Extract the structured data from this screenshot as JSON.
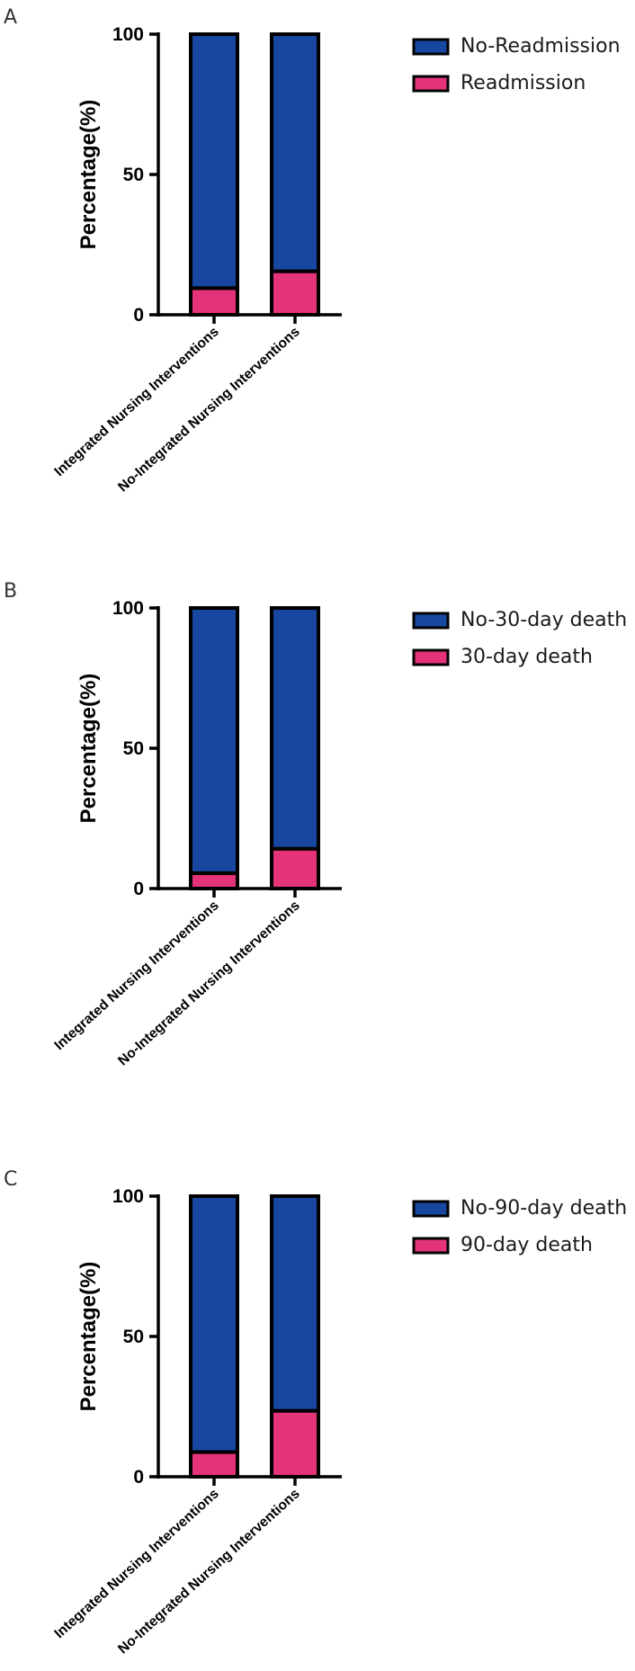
{
  "colors": {
    "upper_segment": "#1747A0",
    "lower_segment": "#E5337A",
    "outline": "#000000"
  },
  "chart_data": [
    {
      "panel": "A",
      "type": "bar",
      "stacked": true,
      "ylabel": "Percentage(%)",
      "ylim": [
        0,
        100
      ],
      "yticks": [
        "0",
        "50",
        "100"
      ],
      "categories": [
        "Integrated Nursing Interventions",
        "No-Integrated Nursing Interventions"
      ],
      "series": [
        {
          "name": "Readmission",
          "values": [
            9.5,
            15.5
          ]
        },
        {
          "name": "No-Readmission",
          "values": [
            90.5,
            84.5
          ]
        }
      ],
      "legend": [
        "No-Readmission",
        "Readmission"
      ],
      "legend_position": "top-right",
      "grid": false
    },
    {
      "panel": "B",
      "type": "bar",
      "stacked": true,
      "ylabel": "Percentage(%)",
      "ylim": [
        0,
        100
      ],
      "yticks": [
        "0",
        "50",
        "100"
      ],
      "categories": [
        "Integrated Nursing Interventions",
        "No-Integrated Nursing Interventions"
      ],
      "series": [
        {
          "name": "30-day death",
          "values": [
            5.5,
            14.2
          ]
        },
        {
          "name": "No-30-day death",
          "values": [
            94.5,
            85.8
          ]
        }
      ],
      "legend": [
        "No-30-day death",
        "30-day death"
      ],
      "legend_position": "top-right",
      "grid": false
    },
    {
      "panel": "C",
      "type": "bar",
      "stacked": true,
      "ylabel": "Percentage(%)",
      "ylim": [
        0,
        100
      ],
      "yticks": [
        "0",
        "50",
        "100"
      ],
      "categories": [
        "Integrated Nursing Interventions",
        "No-Integrated Nursing Interventions"
      ],
      "series": [
        {
          "name": "90-day death",
          "values": [
            8.8,
            23.5
          ]
        },
        {
          "name": "No-90-day death",
          "values": [
            91.2,
            76.5
          ]
        }
      ],
      "legend": [
        "No-90-day death",
        "90-day death"
      ],
      "legend_position": "top-right",
      "grid": false
    }
  ]
}
